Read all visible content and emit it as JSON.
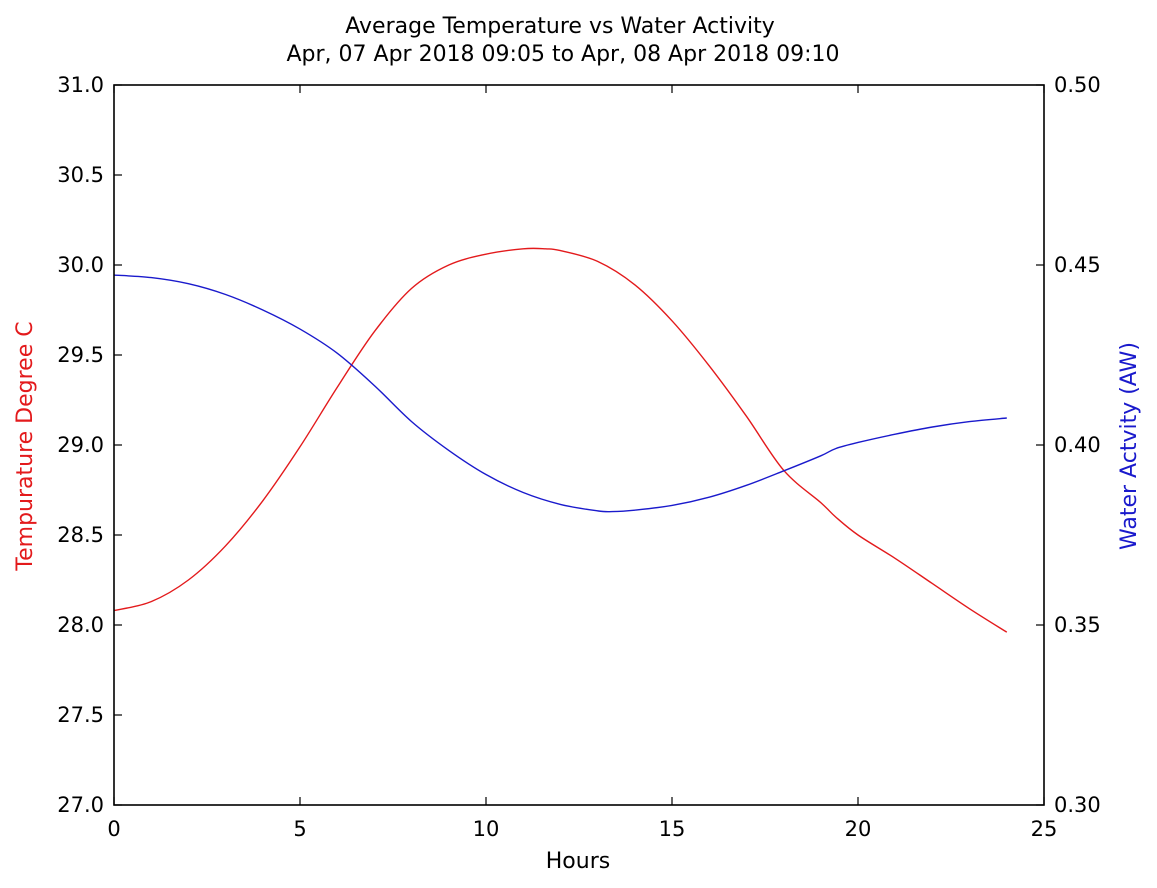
{
  "chart_data": {
    "type": "line",
    "title": "Average Temperature vs Water Activity",
    "subtitle": "Apr, 07 Apr 2018 09:05 to Apr, 08 Apr 2018 09:10",
    "xlabel": "Hours",
    "ylabel_left": "Tempurature Degree C",
    "ylabel_right": "Water Actvity (AW)",
    "xlim": [
      0,
      25
    ],
    "ylim_left": [
      27.0,
      31.0
    ],
    "ylim_right": [
      0.3,
      0.5
    ],
    "x_ticks": [
      "0",
      "5",
      "10",
      "15",
      "20",
      "25"
    ],
    "y_ticks_left": [
      "27.0",
      "27.5",
      "28.0",
      "28.5",
      "29.0",
      "29.5",
      "30.0",
      "30.5",
      "31.0"
    ],
    "y_ticks_right": [
      "0.30",
      "0.35",
      "0.40",
      "0.45",
      "0.50"
    ],
    "grid": false,
    "series": [
      {
        "axis": "left",
        "color": "#e31a1c",
        "x": [
          0,
          1,
          2,
          3,
          4,
          5,
          6,
          7,
          8,
          9,
          10,
          11,
          11.6,
          12,
          13,
          14,
          15,
          16,
          17,
          18,
          19,
          19.4,
          20,
          21,
          22,
          23,
          24
        ],
        "values": [
          28.08,
          28.13,
          28.25,
          28.44,
          28.69,
          28.99,
          29.32,
          29.63,
          29.87,
          30.0,
          30.06,
          30.09,
          30.09,
          30.08,
          30.02,
          29.89,
          29.69,
          29.44,
          29.16,
          28.86,
          28.68,
          28.6,
          28.5,
          28.37,
          28.23,
          28.09,
          27.96
        ]
      },
      {
        "axis": "right",
        "color": "#1a1acc",
        "x": [
          0,
          1,
          2,
          3,
          4,
          5,
          6,
          7,
          8,
          9,
          10,
          11,
          12,
          13,
          13.4,
          14,
          15,
          16,
          17,
          18,
          19,
          19.4,
          20,
          21,
          22,
          23,
          24
        ],
        "values": [
          0.4472,
          0.4465,
          0.4448,
          0.4418,
          0.4375,
          0.4322,
          0.4255,
          0.4165,
          0.4065,
          0.3985,
          0.3918,
          0.3868,
          0.3835,
          0.3817,
          0.3815,
          0.3819,
          0.3832,
          0.3855,
          0.3888,
          0.3928,
          0.397,
          0.399,
          0.4007,
          0.403,
          0.405,
          0.4065,
          0.4075
        ]
      }
    ]
  }
}
